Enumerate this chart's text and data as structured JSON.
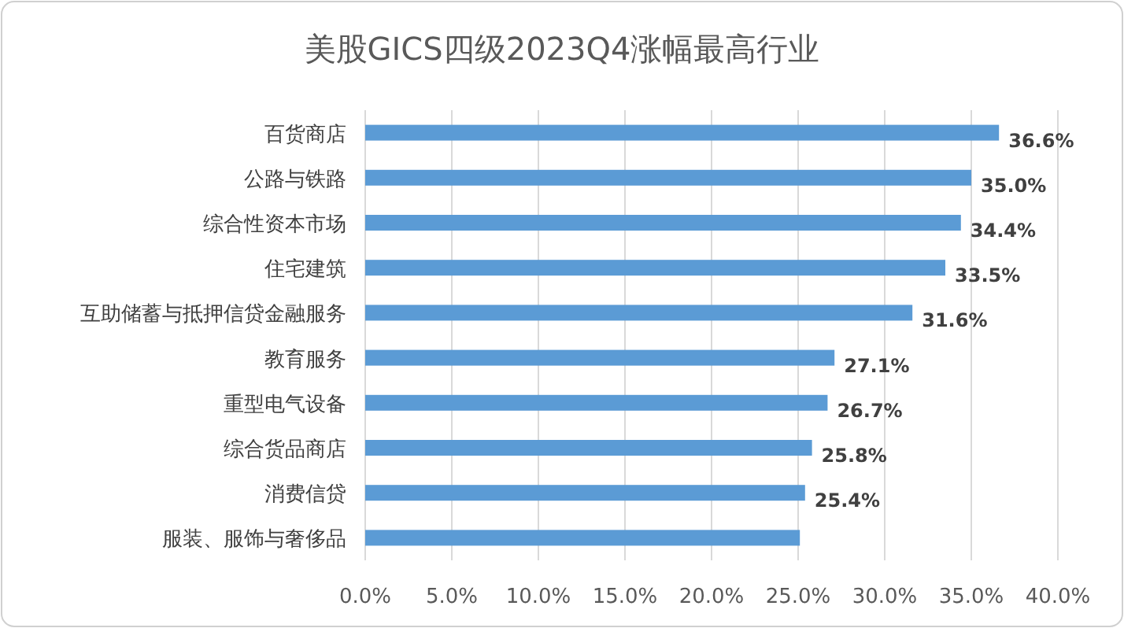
{
  "chart_data": {
    "type": "bar",
    "orientation": "horizontal",
    "title": "美股GICS四级2023Q4涨幅最高行业",
    "categories": [
      "百货商店",
      "公路与铁路",
      "综合性资本市场",
      "住宅建筑",
      "互助储蓄与抵押信贷金融服务",
      "教育服务",
      "重型电气设备",
      "综合货品商店",
      "消费信贷",
      "服装、服饰与奢侈品"
    ],
    "values": [
      36.6,
      35.0,
      34.4,
      33.5,
      31.6,
      27.1,
      26.7,
      25.8,
      25.4,
      25.1
    ],
    "value_labels": [
      "36.6%",
      "35.0%",
      "34.4%",
      "33.5%",
      "31.6%",
      "27.1%",
      "26.7%",
      "25.8%",
      "25.4%",
      null
    ],
    "color": "#5b9bd5",
    "xlim": [
      0,
      40
    ],
    "xticks": [
      {
        "value": 0,
        "label": "0.0%"
      },
      {
        "value": 5,
        "label": "5.0%"
      },
      {
        "value": 10,
        "label": "10.0%"
      },
      {
        "value": 15,
        "label": "15.0%"
      },
      {
        "value": 20,
        "label": "20.0%"
      },
      {
        "value": 25,
        "label": "25.0%"
      },
      {
        "value": 30,
        "label": "30.0%"
      },
      {
        "value": 35,
        "label": "35.0%"
      },
      {
        "value": 40,
        "label": "40.0%"
      }
    ],
    "grid": "x"
  }
}
